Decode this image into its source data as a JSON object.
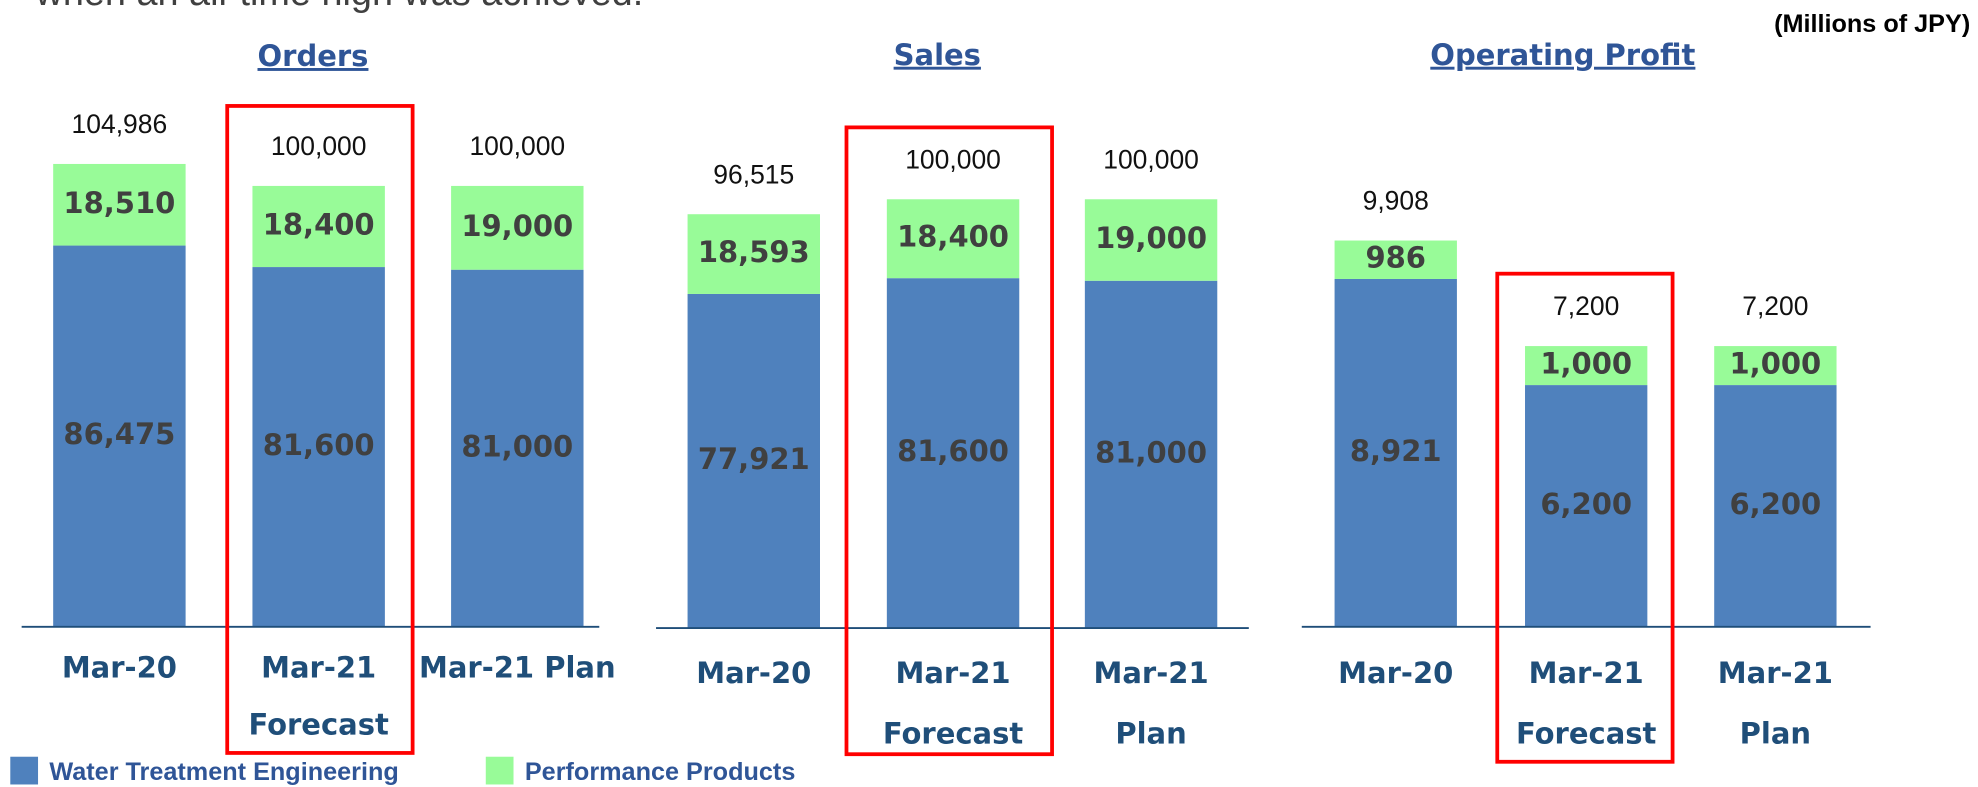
{
  "header_text": "when an all-time high was achieved.",
  "unit": "(Millions of JPY)",
  "chart_data": [
    {
      "type": "stacked_bar",
      "title": "Orders",
      "categories": [
        [
          "Mar-20"
        ],
        [
          "Mar-21",
          "Forecast"
        ],
        [
          "Mar-21 Plan"
        ]
      ],
      "series": [
        {
          "name": "Water Treatment Engineering",
          "color": "#4f81bd",
          "values": [
            86475,
            81600,
            81000
          ],
          "value_labels": [
            "86,475",
            "81,600",
            "81,000"
          ]
        },
        {
          "name": "Performance Products",
          "color": "#98fb98",
          "values": [
            18510,
            18400,
            19000
          ],
          "value_labels": [
            "18,510",
            "18,400",
            "19,000"
          ]
        }
      ],
      "totals": {
        "values": [
          104986,
          100000,
          100000
        ],
        "value_labels": [
          "104,986",
          "100,000",
          "100,000"
        ]
      },
      "ylim": [
        0,
        120000
      ],
      "highlight_index": 1
    },
    {
      "type": "stacked_bar",
      "title": "Sales",
      "categories": [
        [
          "Mar-20"
        ],
        [
          "Mar-21",
          "Forecast"
        ],
        [
          "Mar-21",
          "Plan"
        ]
      ],
      "series": [
        {
          "color": "#4f81bd",
          "values": [
            77921,
            81600,
            81000
          ],
          "value_labels": [
            "77,921",
            "81,600",
            "81,000"
          ]
        },
        {
          "color": "#98fb98",
          "values": [
            18593,
            18400,
            19000
          ],
          "value_labels": [
            "18,593",
            "18,400",
            "19,000"
          ]
        }
      ],
      "totals": {
        "values": [
          96515,
          100000,
          100000
        ],
        "value_labels": [
          "96,515",
          "100,000",
          "100,000"
        ]
      },
      "ylim": [
        0,
        120000
      ],
      "highlight_index": 1
    },
    {
      "type": "stacked_bar",
      "title": "Operating Profit",
      "categories": [
        [
          "Mar-20"
        ],
        [
          "Mar-21",
          "Forecast"
        ],
        [
          "Mar-21",
          "Plan"
        ]
      ],
      "series": [
        {
          "color": "#4f81bd",
          "values": [
            8921,
            6200,
            6200
          ],
          "value_labels": [
            "8,921",
            "6,200",
            "6,200"
          ]
        },
        {
          "color": "#98fb98",
          "values": [
            986,
            1000,
            1000
          ],
          "value_labels": [
            "986",
            "1,000",
            "1,000"
          ]
        }
      ],
      "totals": {
        "values": [
          9908,
          7200,
          7200
        ],
        "value_labels": [
          "9,908",
          "7,200",
          "7,200"
        ]
      },
      "ylim": [
        0,
        12000
      ],
      "highlight_index": 1
    }
  ]
}
